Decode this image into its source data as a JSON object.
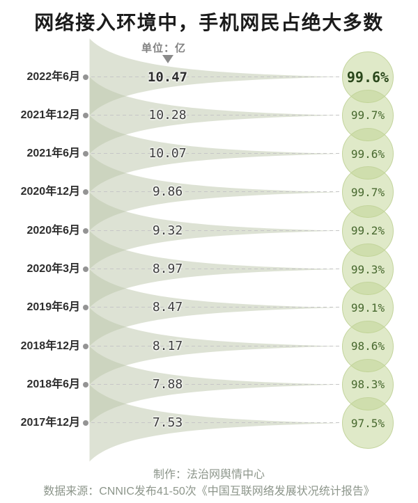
{
  "chart_data": {
    "type": "bar",
    "orientation": "horizontal-funnel-leaves",
    "title": "网络接入环境中，手机网民占绝大多数",
    "unit_label": "单位：亿",
    "unit": "亿",
    "categories": [
      "2022年6月",
      "2021年12月",
      "2021年6月",
      "2020年12月",
      "2020年6月",
      "2020年3月",
      "2019年6月",
      "2018年12月",
      "2018年6月",
      "2017年12月"
    ],
    "values": [
      10.47,
      10.28,
      10.07,
      9.86,
      9.32,
      8.97,
      8.47,
      8.17,
      7.88,
      7.53
    ],
    "percentages": [
      "99.6%",
      "99.7%",
      "99.6%",
      "99.7%",
      "99.2%",
      "99.3%",
      "99.1%",
      "98.6%",
      "98.3%",
      "97.5%"
    ],
    "highlighted_row": "2022年6月",
    "legend": "none",
    "grid": "off"
  },
  "icons": {
    "unit_pointer": "triangle-down"
  },
  "footer": {
    "producer": "制作：法治网舆情中心",
    "source": "数据来源：CNNIC发布41-50次《中国互联网络发展状况统计报告》"
  },
  "colors": {
    "title_text": "#1b1b1b",
    "funnel_fill": "rgba(187,197,169,0.5)",
    "circle_fill": "rgba(191,211,145,0.5)",
    "circle_border": "#c3d49c",
    "percent_text": "#47682e",
    "percent_text_highlight": "#2a471b",
    "value_text": "#3c3c3c",
    "date_text": "#2d2d2d",
    "unit_text": "#828282",
    "footer_text": "#8d968b",
    "dash_line": "#c6c6c6",
    "dot": "#949494"
  }
}
